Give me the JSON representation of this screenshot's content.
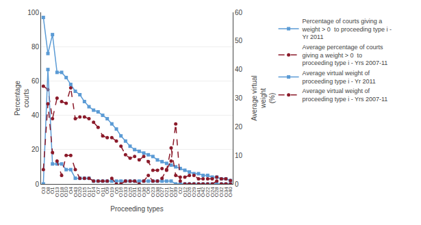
{
  "chart_data": {
    "type": "line",
    "xlabel": "Proceeding types",
    "ylabel": "Percentage\ncourts",
    "y2label": "Average virtual\nweight\n(%)",
    "categories": [
      "O3",
      "O8",
      "O1",
      "O13",
      "O18",
      "O10",
      "O4",
      "O43",
      "O20",
      "O15",
      "O17",
      "O14",
      "O7",
      "O11",
      "O9",
      "O19",
      "O5",
      "O16",
      "O33",
      "O25",
      "O31",
      "O35",
      "O36",
      "O6",
      "O23",
      "O38",
      "O27",
      "O21",
      "O37",
      "O39",
      "O2",
      "O12",
      "O26",
      "O29",
      "O41",
      "O42",
      "O22",
      "O24",
      "O28",
      "O32",
      "O34",
      "O40"
    ],
    "series": [
      {
        "name": "Percentage of courts giving a\nweight > 0  to proceeding type i -\nYr 2011",
        "color": "#5B9BD5",
        "marker": "square",
        "line_style": "solid",
        "axis": "y",
        "values": [
          97,
          76,
          87,
          65,
          65,
          62,
          58,
          54,
          52,
          48,
          45,
          43,
          42,
          40,
          38,
          35,
          32,
          28,
          25,
          22,
          20,
          19,
          18,
          17,
          16,
          14,
          13,
          12,
          11,
          10,
          9,
          8,
          7,
          6,
          6,
          5,
          5,
          4,
          4,
          3,
          3,
          2
        ]
      },
      {
        "name": "Average percentage of courts\ngiving a weight > 0  to\nproceeding type i - Yrs 2007-11",
        "color": "#8B1A2A",
        "marker": "circle",
        "line_style": "dash",
        "axis": "y",
        "values": [
          57,
          55,
          38,
          50,
          48,
          47,
          56,
          38,
          39,
          39,
          38,
          36,
          33,
          28,
          27,
          27,
          25,
          22,
          17,
          15,
          16,
          14,
          16,
          13,
          8,
          8,
          9,
          8,
          21,
          5,
          4,
          4,
          5,
          5,
          3,
          3,
          3,
          3,
          4,
          3,
          3,
          2
        ]
      },
      {
        "name": "Average virtual weight of\nproceeding type i - Yr 2011",
        "color": "#5B9BD5",
        "marker": "square",
        "line_style": "solid",
        "axis": "y2",
        "values": [
          0,
          40,
          7,
          7,
          7,
          5,
          5,
          2,
          2,
          2,
          2,
          1,
          1,
          1,
          1,
          1,
          1,
          1,
          1,
          1,
          1,
          1,
          1,
          1,
          1,
          1,
          1,
          1,
          1,
          0,
          0,
          0,
          0,
          0,
          0,
          0,
          0,
          0,
          0,
          0,
          0,
          0
        ]
      },
      {
        "name": "Average virtual weight of\nproceeding type i - Yrs 2007-11",
        "color": "#8B1A2A",
        "marker": "circle",
        "line_style": "dash",
        "axis": "y2",
        "values": [
          5,
          28,
          11,
          8,
          3,
          10,
          10,
          5,
          2,
          2,
          2,
          1,
          1,
          1,
          1,
          2,
          0,
          0,
          1,
          1,
          1,
          0,
          1,
          3,
          1,
          1,
          2,
          5,
          8,
          21,
          1,
          0,
          0,
          0,
          0,
          0,
          0,
          0,
          1,
          0,
          0,
          0
        ]
      }
    ],
    "ylim": [
      0,
      100
    ],
    "yticks": [
      0,
      20,
      40,
      60,
      80,
      100
    ],
    "y2lim": [
      0,
      60
    ],
    "y2ticks": [
      0,
      10,
      20,
      30,
      40,
      50,
      60
    ],
    "grid": true,
    "legend": "right"
  }
}
